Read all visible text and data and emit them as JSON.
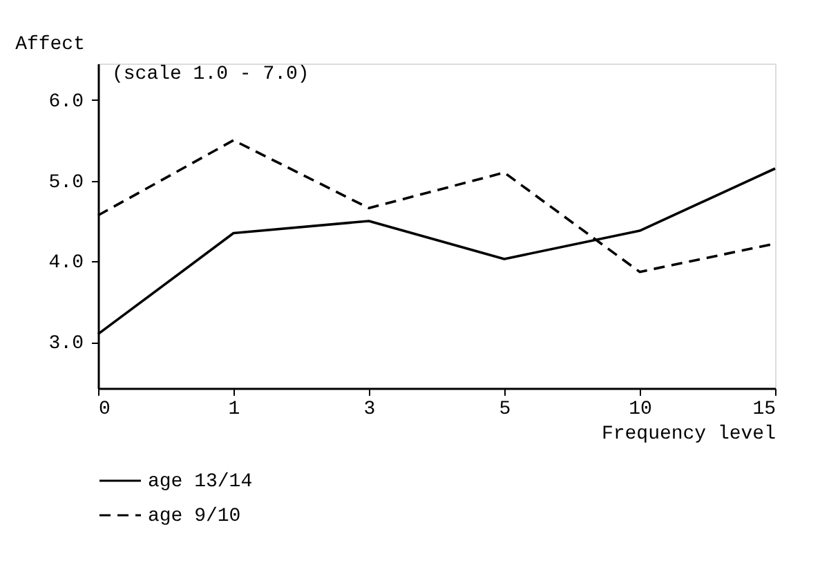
{
  "chart_data": {
    "type": "line",
    "xlabel": "Frequency level",
    "ylabel": "Affect",
    "annotations": [
      "(scale 1.0 - 7.0)"
    ],
    "categories": [
      "0",
      "1",
      "3",
      "5",
      "10",
      "15"
    ],
    "series": [
      {
        "name": "age 13/14",
        "color": "#000000",
        "line_style": "solid",
        "values": [
          3.1,
          4.35,
          4.5,
          4.03,
          4.38,
          5.15
        ]
      },
      {
        "name": "age 9/10",
        "color": "#000000",
        "line_style": "dashed",
        "values": [
          4.57,
          5.5,
          4.66,
          5.1,
          3.87,
          4.22
        ]
      }
    ],
    "ylim": [
      2.43,
      6.45
    ],
    "yticks": [
      {
        "value": 3,
        "label": "3.0"
      },
      {
        "value": 4,
        "label": "4.0"
      },
      {
        "value": 5,
        "label": "5.0"
      },
      {
        "value": 6,
        "label": "6.0"
      }
    ],
    "grid": false,
    "legend": "bottom",
    "marker": "none"
  }
}
